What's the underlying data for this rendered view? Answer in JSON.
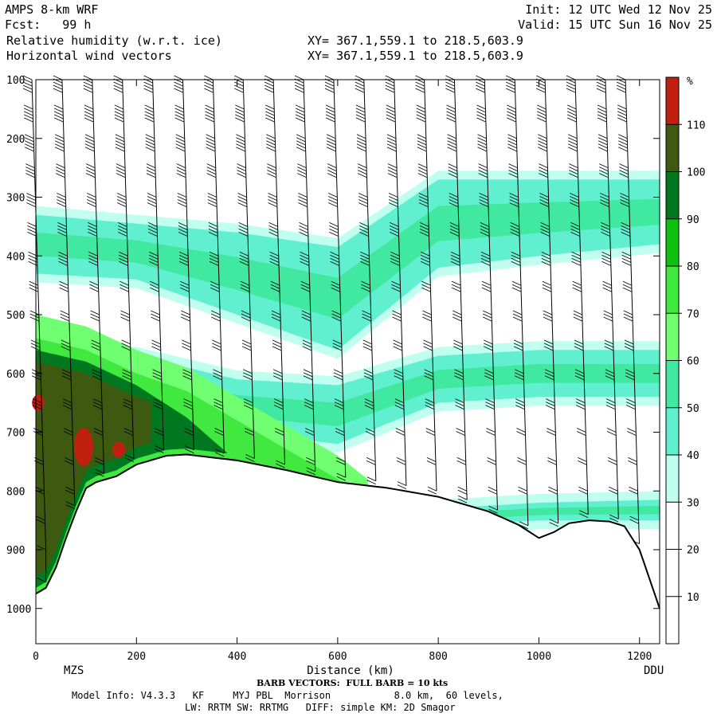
{
  "header": {
    "model": "AMPS 8-km WRF",
    "fcst": "Fcst:   99 h",
    "field1": "Relative humidity (w.r.t. ice)",
    "field2": "Horizontal wind vectors",
    "xy1": "XY= 367.1,559.1 to 218.5,603.9",
    "xy2": "XY= 367.1,559.1 to 218.5,603.9",
    "init": "Init: 12 UTC Wed 12 Nov 25",
    "valid": "Valid: 15 UTC Sun 16 Nov 25"
  },
  "footer": {
    "barb_note": "BARB VECTORS:  FULL BARB = 10 kts",
    "model_info": "Model Info: V4.3.3   KF     MYJ PBL  Morrison           8.0 km,  60 levels,",
    "physics": "LW: RRTM SW: RRTMG   DIFF: simple KM: 2D Smagor"
  },
  "colors": {
    "c0_10": "#ffffff",
    "c10_20": "#ffffff",
    "c20_30": "#ffffff",
    "c30_40": "#c0fff0",
    "c40_50": "#60f0d0",
    "c50_60": "#40e8a0",
    "c60_70": "#70ff70",
    "c70_80": "#40e840",
    "c80_90": "#10c010",
    "c90_100": "#007820",
    "c100_110": "#3e5a10",
    "c110p": "#c02010"
  },
  "chart_data": {
    "type": "heatmap",
    "title": "Relative humidity (w.r.t. ice)",
    "xlabel": "Distance (km)",
    "ylabel": "",
    "xlim": [
      0,
      1240
    ],
    "ylim": [
      1060,
      100
    ],
    "x_ticks": [
      0,
      200,
      400,
      600,
      800,
      1000,
      1200
    ],
    "y_ticks": [
      100,
      200,
      300,
      400,
      500,
      600,
      700,
      800,
      900,
      1000
    ],
    "end_labels": {
      "left": "MZS",
      "right": "DDU"
    },
    "colorbar": {
      "unit": "%",
      "levels": [
        10,
        20,
        30,
        40,
        50,
        60,
        70,
        80,
        90,
        100,
        110
      ],
      "colors": [
        "#ffffff",
        "#ffffff",
        "#ffffff",
        "#c0fff0",
        "#60f0d0",
        "#40e8a0",
        "#70ff70",
        "#40e840",
        "#10c010",
        "#007820",
        "#3e5a10",
        "#c02010"
      ]
    },
    "terrain": {
      "x": [
        0,
        20,
        40,
        60,
        80,
        100,
        120,
        160,
        200,
        260,
        300,
        400,
        500,
        600,
        700,
        800,
        900,
        960,
        1000,
        1030,
        1060,
        1100,
        1140,
        1170,
        1200,
        1220,
        1240
      ],
      "p": [
        975,
        965,
        930,
        880,
        835,
        795,
        785,
        775,
        755,
        740,
        738,
        748,
        765,
        785,
        795,
        810,
        835,
        858,
        880,
        870,
        855,
        850,
        852,
        860,
        900,
        950,
        1000
      ]
    },
    "bands": [
      {
        "name": "upper",
        "x": [
          0,
          200,
          400,
          600,
          800,
          1000,
          1240
        ],
        "top": [
          330,
          345,
          360,
          385,
          270,
          270,
          270
        ],
        "bot": [
          430,
          440,
          500,
          560,
          420,
          400,
          380
        ],
        "cores": [
          {
            "x0": 0,
            "x1": 500,
            "dp": 25
          }
        ]
      },
      {
        "name": "middle",
        "x": [
          0,
          200,
          400,
          600,
          800,
          1000,
          1240
        ],
        "top": [
          560,
          570,
          610,
          620,
          570,
          560,
          560
        ],
        "bot": [
          620,
          640,
          700,
          720,
          650,
          640,
          640
        ]
      },
      {
        "name": "lower",
        "x": [
          0,
          200,
          400,
          600,
          800,
          1000,
          1240
        ],
        "top": [
          840,
          830,
          830,
          840,
          830,
          820,
          815
        ],
        "bot": [
          875,
          870,
          870,
          870,
          860,
          850,
          850
        ]
      }
    ],
    "moist_boundary_layer": {
      "x": [
        0,
        100,
        200,
        300,
        400,
        500,
        600,
        660
      ],
      "top": [
        500,
        520,
        560,
        590,
        640,
        690,
        740,
        780
      ]
    },
    "red_cells": [
      {
        "x": 5,
        "p": 650
      },
      {
        "x": 95,
        "p": 725
      },
      {
        "x": 165,
        "p": 730
      }
    ],
    "barbs": {
      "x": [
        20,
        80,
        140,
        200,
        260,
        320,
        380,
        440,
        500,
        560,
        620,
        680,
        740,
        800,
        860,
        920,
        980,
        1040,
        1100,
        1160,
        1200
      ],
      "levels": [
        100,
        150,
        200,
        250,
        300,
        350,
        400,
        450,
        500,
        550,
        600,
        650,
        700,
        750,
        800,
        850,
        900
      ],
      "note": "Upper levels strong (40-60 kt), decreasing toward surface; columns lean left with height"
    }
  }
}
